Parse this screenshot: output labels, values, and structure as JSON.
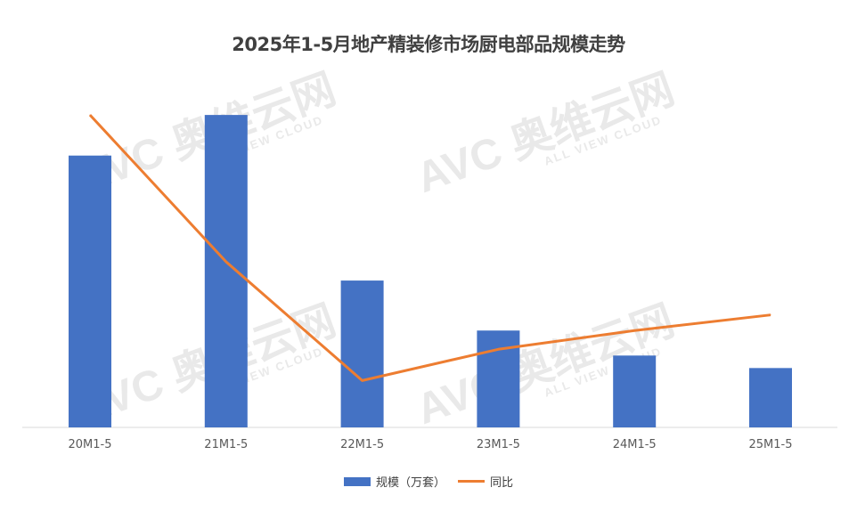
{
  "chart_data": {
    "type": "bar+line",
    "title": "2025年1-5月地产精装修市场厨电部品规模走势",
    "categories": [
      "20M1-5",
      "21M1-5",
      "22M1-5",
      "23M1-5",
      "24M1-5",
      "25M1-5"
    ],
    "series": [
      {
        "name": "规模（万套）",
        "type": "bar",
        "color": "#4472c4",
        "values": [
          87,
          100,
          47,
          31,
          23,
          19
        ]
      },
      {
        "name": "同比",
        "type": "line",
        "color": "#ed7d31",
        "values": [
          100,
          53,
          15,
          25,
          31,
          36
        ]
      }
    ],
    "ylim": [
      0,
      112
    ],
    "y_axis_labels_shown": false,
    "note_units": "relative scale, no axis values printed",
    "grid": false,
    "legend": "bottom",
    "watermark": "AVC 奥维云网 ALL VIEW CLOUD"
  }
}
